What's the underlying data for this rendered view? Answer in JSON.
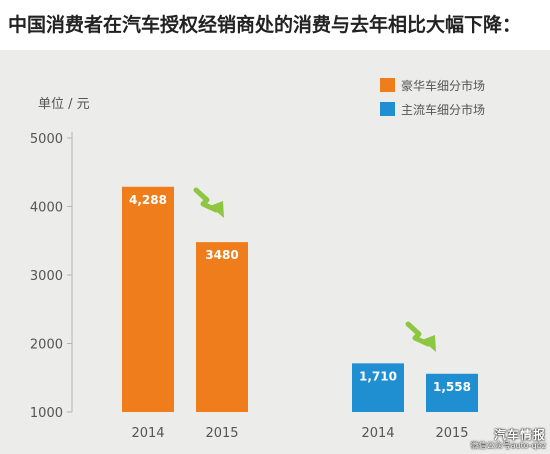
{
  "title": "中国消费者在汽车授权经销商处的消费与去年相比大幅下降：",
  "chart_data": {
    "type": "bar",
    "unit_label": "单位 / 元",
    "ylim": [
      1000,
      5000
    ],
    "y_ticks": [
      "1000",
      "2000",
      "3000",
      "4000",
      "5000"
    ],
    "grid": false,
    "legend_position": "top-right",
    "series": [
      {
        "name": "豪华车细分市场",
        "color": "#f07d1c",
        "label_color": "#ffffff",
        "categories": [
          "2014",
          "2015"
        ],
        "values": [
          4288,
          3480
        ],
        "labels": [
          "4,288",
          "3480"
        ]
      },
      {
        "name": "主流车细分市场",
        "color": "#1f8fd1",
        "label_color": "#ffffff",
        "categories": [
          "2014",
          "2015"
        ],
        "values": [
          1710,
          1558
        ],
        "labels": [
          "1,710",
          "1,558"
        ]
      }
    ],
    "trend_arrow_color": "#8dc63f"
  },
  "watermark": {
    "line1": "汽车情报",
    "line2": "微信公众号auto-qbz"
  }
}
